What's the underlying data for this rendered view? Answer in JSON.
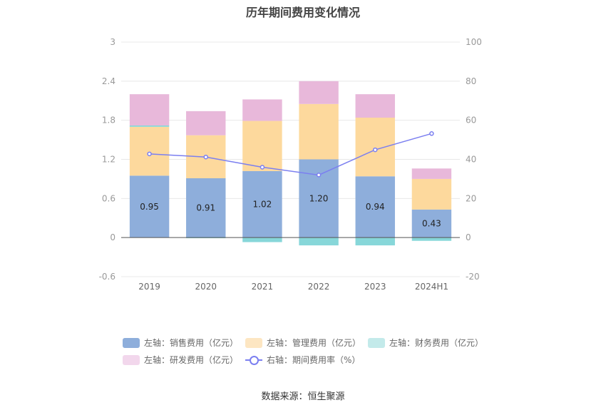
{
  "chart_data": {
    "type": "bar",
    "title": "历年期间费用变化情况",
    "categories": [
      "2019",
      "2020",
      "2021",
      "2022",
      "2023",
      "2024H1"
    ],
    "left_axis": {
      "ticks": [
        "3",
        "2.4",
        "1.8",
        "1.2",
        "0.6",
        "0",
        "-0.6"
      ],
      "ylim": [
        -0.6,
        3
      ]
    },
    "right_axis": {
      "ticks": [
        "100",
        "80",
        "60",
        "40",
        "20",
        "0",
        "-20"
      ],
      "ylim": [
        -20,
        100
      ]
    },
    "stacked": true,
    "series": [
      {
        "name": "左轴：销售费用（亿元）",
        "axis": "left",
        "type": "bar",
        "color": "#8eaedb",
        "values": [
          0.95,
          0.91,
          1.02,
          1.2,
          0.94,
          0.43
        ],
        "labels": [
          "0.95",
          "0.91",
          "1.02",
          "1.20",
          "0.94",
          "0.43"
        ]
      },
      {
        "name": "左轴：管理费用（亿元）",
        "axis": "left",
        "type": "bar",
        "color": "#fdd99d",
        "values": [
          0.75,
          0.66,
          0.77,
          0.85,
          0.9,
          0.47
        ]
      },
      {
        "name": "左轴：财务费用（亿元）",
        "axis": "left",
        "type": "bar",
        "color": "#87d7d9",
        "values": [
          0.02,
          -0.01,
          -0.07,
          -0.12,
          -0.12,
          -0.05
        ]
      },
      {
        "name": "左轴：研发费用（亿元）",
        "axis": "left",
        "type": "bar",
        "color": "#e8b8da",
        "values": [
          0.48,
          0.37,
          0.33,
          0.35,
          0.36,
          0.16
        ]
      },
      {
        "name": "右轴：期间费用率（%）",
        "axis": "right",
        "type": "line",
        "color": "#7b7ff0",
        "values": [
          42.8,
          41.2,
          36.0,
          32.0,
          44.9,
          53.2
        ]
      }
    ],
    "legend_position": "bottom",
    "grid": true
  },
  "source": "数据来源：恒生聚源",
  "colors": {
    "axis_text": "#999999",
    "grid": "#e8e8e8",
    "axis_line": "#555555"
  }
}
